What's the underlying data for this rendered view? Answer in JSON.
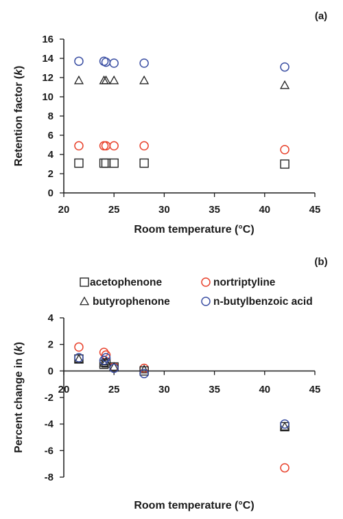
{
  "colors": {
    "acetophenone": "#222222",
    "butyrophenone": "#222222",
    "nortriptyline": "#e8402a",
    "n_butylbenzoic_acid": "#3b4fa3",
    "axis": "#1a1a1a"
  },
  "chart_data": [
    {
      "type": "scatter",
      "panel_label": "(a)",
      "xlabel": "Room temperature (°C)",
      "ylabel": "Retention factor (k)",
      "ylabel_parts": [
        "Retention factor (",
        "k",
        ")"
      ],
      "xlim": [
        20,
        45
      ],
      "ylim": [
        0,
        16
      ],
      "xticks": [
        20,
        25,
        30,
        35,
        40,
        45
      ],
      "yticks": [
        0,
        2,
        4,
        6,
        8,
        10,
        12,
        14,
        16
      ],
      "grid": false,
      "series": [
        {
          "key": "acetophenone",
          "marker": "square",
          "x": [
            21.5,
            24,
            24.2,
            25,
            28,
            42
          ],
          "y": [
            3.1,
            3.1,
            3.1,
            3.1,
            3.1,
            3.0
          ]
        },
        {
          "key": "nortriptyline",
          "marker": "circle",
          "x": [
            21.5,
            24,
            24.2,
            25,
            28,
            42
          ],
          "y": [
            4.9,
            4.9,
            4.9,
            4.9,
            4.9,
            4.5
          ]
        },
        {
          "key": "butyrophenone",
          "marker": "triangle",
          "x": [
            21.5,
            24,
            24.2,
            25,
            28,
            42
          ],
          "y": [
            11.7,
            11.7,
            11.7,
            11.7,
            11.7,
            11.2
          ]
        },
        {
          "key": "n_butylbenzoic_acid",
          "marker": "circle",
          "x": [
            21.5,
            24,
            24.2,
            25,
            28,
            42
          ],
          "y": [
            13.7,
            13.7,
            13.6,
            13.5,
            13.5,
            13.1
          ]
        }
      ]
    },
    {
      "type": "scatter",
      "panel_label": "(b)",
      "xlabel": "Room temperature (°C)",
      "ylabel": "Percent change in (k)",
      "ylabel_parts": [
        "Percent change in (",
        "k",
        ")"
      ],
      "xlim": [
        20,
        45
      ],
      "ylim": [
        -8,
        4
      ],
      "xticks": [
        20,
        25,
        30,
        35,
        40,
        45
      ],
      "yticks": [
        -8,
        -6,
        -4,
        -2,
        0,
        2,
        4
      ],
      "grid": false,
      "legend": [
        {
          "key": "acetophenone",
          "label": "acetophenone",
          "marker": "square"
        },
        {
          "key": "nortriptyline",
          "label": "nortriptyline",
          "marker": "circle"
        },
        {
          "key": "butyrophenone",
          "label": "butyrophenone",
          "marker": "triangle"
        },
        {
          "key": "n_butylbenzoic_acid",
          "label": "n-butylbenzoic acid",
          "marker": "circle"
        }
      ],
      "series": [
        {
          "key": "nortriptyline",
          "marker": "circle",
          "x": [
            21.5,
            24,
            24.2,
            25,
            28,
            42
          ],
          "y": [
            1.8,
            1.4,
            1.2,
            0.3,
            0.2,
            -7.3
          ]
        },
        {
          "key": "acetophenone",
          "marker": "square",
          "x": [
            21.5,
            24,
            24.2,
            25,
            28,
            42
          ],
          "y": [
            0.9,
            0.5,
            0.6,
            0.3,
            0.0,
            -4.2
          ]
        },
        {
          "key": "butyrophenone",
          "marker": "triangle",
          "x": [
            21.5,
            24,
            24.2,
            25,
            28,
            42
          ],
          "y": [
            0.9,
            0.6,
            0.7,
            0.3,
            0.1,
            -4.2
          ]
        },
        {
          "key": "n_butylbenzoic_acid",
          "marker": "circle",
          "x": [
            21.5,
            24,
            24.2,
            25,
            28,
            42
          ],
          "y": [
            1.0,
            0.8,
            1.0,
            0.2,
            -0.2,
            -4.0
          ]
        }
      ]
    }
  ]
}
